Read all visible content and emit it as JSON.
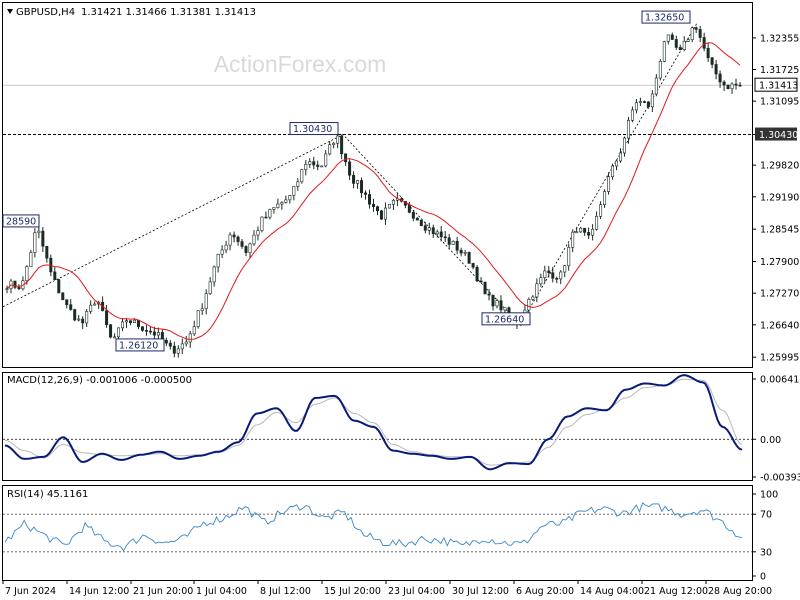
{
  "header": {
    "symbol": "GBPUSD,H4",
    "ohlc": "1.31421 1.31466 1.31381 1.31413",
    "watermark": "ActionForex.com"
  },
  "colors": {
    "candle": "#1a2b22",
    "ma": "#e01919",
    "macd": "#0a1a78",
    "signal": "#b8b8b8",
    "rsi": "#3a86c8",
    "grid_dash": "#000000",
    "watermark": "#d9d9d9"
  },
  "chart_data": [
    {
      "type": "candlestick",
      "title": "GBPUSD,H4",
      "y_ticks": [
        "1.32355",
        "1.31725",
        "1.31095",
        "1.30430",
        "1.29820",
        "1.29190",
        "1.28545",
        "1.27900",
        "1.27270",
        "1.26640",
        "1.25995"
      ],
      "ylim": [
        1.258,
        1.3305
      ],
      "current_price": "1.31413",
      "horizontal_line": "1.30430",
      "moving_average": "red line",
      "annotations": [
        {
          "label": "1.32650",
          "value": 1.3265
        },
        {
          "label": "1.30430",
          "value": 1.3043
        },
        {
          "label": "28590",
          "value": 1.2859
        },
        {
          "label": "1.26640",
          "value": 1.2664
        },
        {
          "label": "1.26120",
          "value": 1.2612
        }
      ],
      "swing_path": [
        1.27,
        1.3043,
        1.2664,
        1.3265
      ],
      "close_path": [
        1.2745,
        1.274,
        1.2859,
        1.276,
        1.27,
        1.2665,
        1.272,
        1.263,
        1.2675,
        1.266,
        1.2645,
        1.2612,
        1.263,
        1.27,
        1.279,
        1.285,
        1.281,
        1.287,
        1.29,
        1.292,
        1.299,
        1.298,
        1.3043,
        1.296,
        1.292,
        1.288,
        1.291,
        1.289,
        1.286,
        1.284,
        1.282,
        1.279,
        1.272,
        1.27,
        1.2664,
        1.272,
        1.277,
        1.276,
        1.286,
        1.283,
        1.294,
        1.301,
        1.311,
        1.31,
        1.324,
        1.3205,
        1.3265,
        1.318,
        1.314,
        1.31413
      ],
      "x_ticks": [
        "7 Jun 2024",
        "14 Jun 12:00",
        "21 Jun 20:00",
        "1 Jul 04:00",
        "8 Jul 12:00",
        "15 Jul 20:00",
        "23 Jul 04:00",
        "30 Jul 12:00",
        "6 Aug 20:00",
        "14 Aug 04:00",
        "21 Aug 12:00",
        "28 Aug 20:00"
      ]
    },
    {
      "type": "line",
      "title": "MACD(12,26,9) -0.001006 -0.000500",
      "y_ticks": [
        "0.006413",
        "0.00",
        "-0.003938"
      ],
      "ylim": [
        -0.00394,
        0.00641
      ],
      "series": [
        {
          "name": "MACD",
          "values": [
            -0.0006,
            -0.0019,
            -0.0017,
            0.0002,
            -0.0022,
            -0.0014,
            -0.002,
            -0.0015,
            -0.0012,
            -0.0019,
            -0.0016,
            -0.0012,
            -0.0003,
            0.0025,
            0.003,
            0.0008,
            0.004,
            0.0042,
            0.0018,
            0.0012,
            -0.0011,
            -0.0014,
            -0.0016,
            -0.0019,
            -0.0017,
            -0.0029,
            -0.0023,
            -0.0024,
            0.0,
            0.0022,
            0.003,
            0.0028,
            0.0048,
            0.0054,
            0.0052,
            0.0062,
            0.0055,
            0.0012,
            -0.00101
          ]
        },
        {
          "name": "Signal",
          "values": [
            -0.0001,
            -0.0011,
            -0.0018,
            -0.0005,
            -0.0013,
            -0.0015,
            -0.0016,
            -0.0015,
            -0.0014,
            -0.0016,
            -0.0015,
            -0.0013,
            -0.0006,
            0.0014,
            0.0026,
            0.0016,
            0.0034,
            0.004,
            0.0025,
            0.0016,
            -0.0005,
            -0.0012,
            -0.0015,
            -0.0017,
            -0.0017,
            -0.0025,
            -0.0024,
            -0.0022,
            -0.0008,
            0.0012,
            0.0024,
            0.0029,
            0.004,
            0.005,
            0.0052,
            0.0058,
            0.0057,
            0.0028,
            -0.0005
          ]
        }
      ]
    },
    {
      "type": "line",
      "title": "RSI(14) 45.1161",
      "y_ticks": [
        "100",
        "70",
        "30",
        "0"
      ],
      "ylim": [
        0,
        100
      ],
      "series": [
        {
          "name": "RSI",
          "values": [
            40,
            60,
            47,
            36,
            58,
            41,
            35,
            48,
            39,
            44,
            61,
            66,
            78,
            61,
            73,
            80,
            65,
            72,
            48,
            40,
            38,
            44,
            42,
            36,
            45,
            40,
            38,
            58,
            60,
            72,
            76,
            71,
            78,
            77,
            70,
            75,
            62,
            45.1161
          ]
        }
      ]
    }
  ]
}
